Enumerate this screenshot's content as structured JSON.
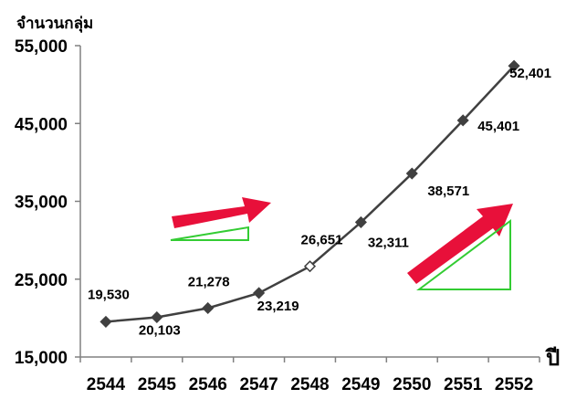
{
  "chart_data": {
    "type": "line",
    "title": "",
    "ylabel": "จำนวนกลุ่ม",
    "xlabel": "ปี",
    "categories": [
      "2544",
      "2545",
      "2546",
      "2547",
      "2548",
      "2549",
      "2550",
      "2551",
      "2552"
    ],
    "series": [
      {
        "values": [
          19530,
          20103,
          21278,
          23219,
          26651,
          32311,
          38571,
          45401,
          52401
        ]
      }
    ],
    "data_labels": [
      "19,530",
      "20,103",
      "21,278",
      "23,219",
      "26,651",
      "32,311",
      "38,571",
      "45,401",
      "52,401"
    ],
    "yticks": [
      "15,000",
      "25,000",
      "35,000",
      "45,000",
      "55,000"
    ],
    "ylim": [
      15000,
      55000
    ],
    "grid": false,
    "legend": "none",
    "colors": {
      "line": "#404040",
      "marker": "#404040",
      "arrow": "#e8103a",
      "triangle": "#33cc33"
    }
  }
}
